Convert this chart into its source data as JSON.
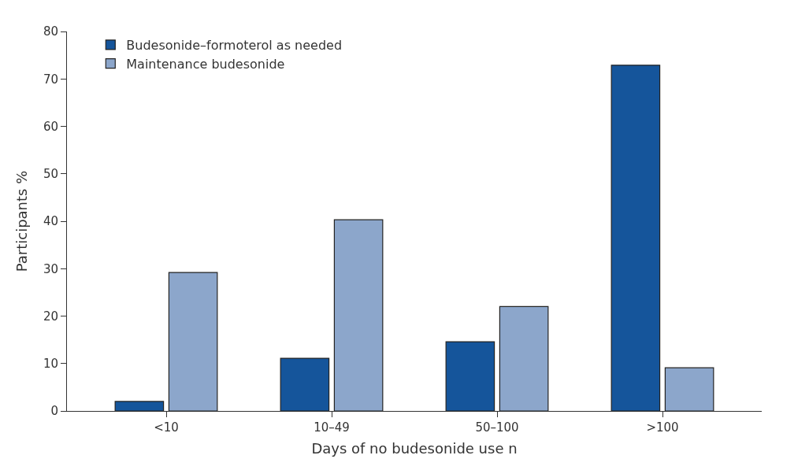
{
  "chart_data": {
    "type": "bar",
    "xlabel": "Days of no budesonide use n",
    "ylabel": "Participants %",
    "categories": [
      "<10",
      "10–49",
      "50–100",
      ">100"
    ],
    "series": [
      {
        "name": "Budesonide–formoterol as needed",
        "color": "#15559b",
        "values": [
          2.0,
          11.1,
          14.6,
          72.9
        ]
      },
      {
        "name": "Maintenance budesonide",
        "color": "#8ca6cb",
        "values": [
          29.2,
          40.3,
          22.0,
          9.1
        ]
      }
    ],
    "ylim": [
      0,
      80
    ],
    "yticks": [
      0,
      10,
      20,
      30,
      40,
      50,
      60,
      70,
      80
    ],
    "grid": false,
    "legend": "top left"
  }
}
